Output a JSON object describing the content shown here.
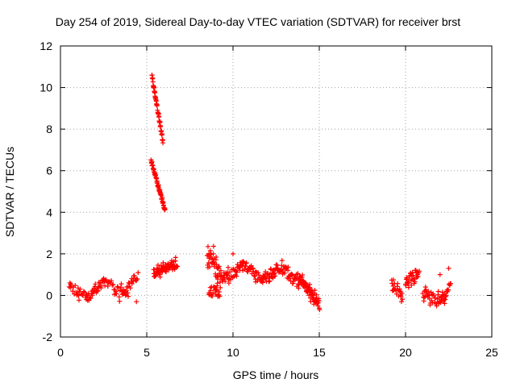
{
  "chart_data": {
    "type": "scatter",
    "title": "Day 254 of 2019, Sidereal Day-to-day VTEC variation (SDTVAR) for receiver brst",
    "xlabel": "GPS time / hours",
    "ylabel": "SDTVAR / TECUs",
    "xlim": [
      0,
      25
    ],
    "ylim": [
      -2,
      12
    ],
    "x_ticks": [
      0,
      5,
      10,
      15,
      20,
      25
    ],
    "y_ticks": [
      -2,
      0,
      2,
      4,
      6,
      8,
      10,
      12
    ],
    "grid": true,
    "legend": "none",
    "marker": "+",
    "color": "#ff0000",
    "series": [
      {
        "name": "SDTVAR",
        "segments": [
          {
            "t0": 0.5,
            "t1": 4.5,
            "step": 0.05,
            "base": 0.1,
            "slope": 0.12,
            "amp": 0.3,
            "noise": 0.25
          },
          {
            "t0": 5.3,
            "t1": 5.95,
            "step": 0.02,
            "base": 10.55,
            "slope": -5.0,
            "amp": 0.0,
            "noise": 0.08
          },
          {
            "t0": 5.25,
            "t1": 6.05,
            "step": 0.02,
            "base": 6.5,
            "slope": -3.0,
            "amp": 0.0,
            "noise": 0.08
          },
          {
            "t0": 5.4,
            "t1": 6.8,
            "step": 0.03,
            "base": 1.3,
            "slope": 0.0,
            "amp": 0.2,
            "noise": 0.2
          },
          {
            "t0": 8.5,
            "t1": 9.3,
            "step": 0.03,
            "base": 1.5,
            "slope": -0.5,
            "amp": 0.4,
            "noise": 0.45
          },
          {
            "t0": 8.6,
            "t1": 9.2,
            "step": 0.04,
            "base": 0.0,
            "slope": 0.3,
            "amp": 0.2,
            "noise": 0.3
          },
          {
            "t0": 9.3,
            "t1": 13.8,
            "step": 0.04,
            "base": 1.2,
            "slope": -0.05,
            "amp": 0.3,
            "noise": 0.25
          },
          {
            "t0": 13.8,
            "t1": 15.0,
            "step": 0.03,
            "base": 0.8,
            "slope": -1.0,
            "amp": 0.0,
            "noise": 0.25
          },
          {
            "t0": 19.2,
            "t1": 19.8,
            "step": 0.04,
            "base": 0.5,
            "slope": -0.6,
            "amp": 0.2,
            "noise": 0.3
          },
          {
            "t0": 20.0,
            "t1": 20.8,
            "step": 0.04,
            "base": 0.8,
            "slope": 0.0,
            "amp": 0.3,
            "noise": 0.25
          },
          {
            "t0": 21.0,
            "t1": 22.6,
            "step": 0.04,
            "base": 0.0,
            "slope": 0.1,
            "amp": 0.3,
            "noise": 0.3
          }
        ],
        "isolated_points": [
          [
            4.4,
            -0.3
          ],
          [
            10.0,
            2.0
          ],
          [
            8.55,
            2.35
          ],
          [
            22.0,
            1.0
          ],
          [
            22.5,
            1.3
          ]
        ]
      }
    ]
  }
}
